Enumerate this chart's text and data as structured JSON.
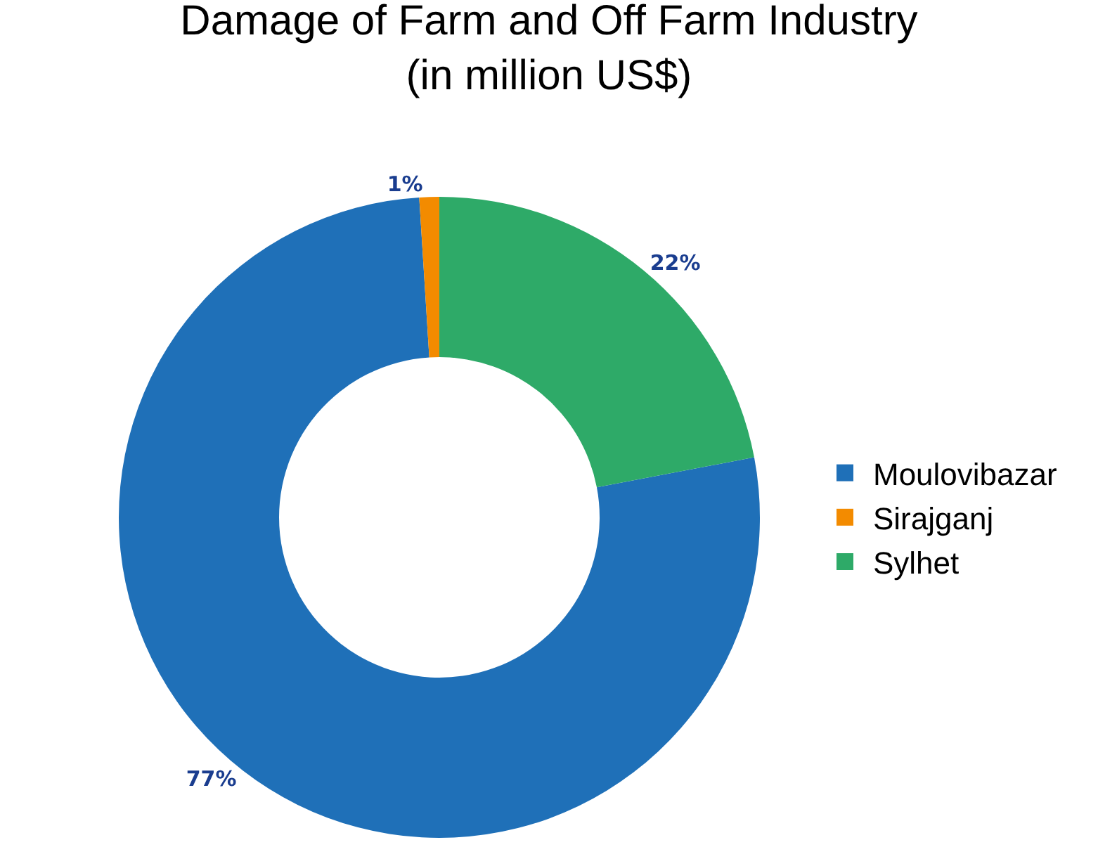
{
  "chart_data": {
    "type": "donut",
    "title": "Damage of Farm and Off Farm Industry\n(in million US$)",
    "categories": [
      "Moulovibazar",
      "Sirajganj",
      "Sylhet"
    ],
    "values": [
      77,
      1,
      22
    ],
    "colors": [
      "#1f70b8",
      "#f38b00",
      "#2eaa68"
    ],
    "value_labels": [
      "77%",
      "1%",
      "22%"
    ],
    "legend": "right"
  }
}
